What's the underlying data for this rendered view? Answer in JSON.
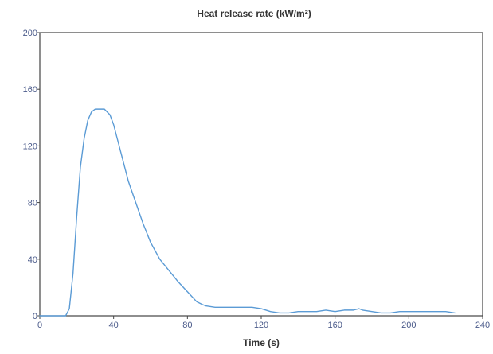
{
  "chart_data": {
    "type": "line",
    "title": "Heat release rate (kW/m²)",
    "xlabel": "Time (s)",
    "ylabel": "",
    "xlim": [
      0,
      240
    ],
    "ylim": [
      0,
      200
    ],
    "xticks": [
      0,
      40,
      80,
      120,
      160,
      200,
      240
    ],
    "yticks": [
      0,
      40,
      80,
      120,
      160,
      200
    ],
    "grid": false,
    "legend": "none",
    "colors": {
      "line": "#5b9bd5",
      "axis": "#444444",
      "text": "#333333"
    },
    "series": [
      {
        "x": [
          0,
          5,
          10,
          14,
          16,
          18,
          20,
          22,
          24,
          26,
          28,
          30,
          32,
          35,
          38,
          40,
          42,
          45,
          48,
          52,
          56,
          60,
          65,
          70,
          75,
          80,
          85,
          88,
          90,
          95,
          100,
          105,
          110,
          115,
          120,
          125,
          130,
          135,
          140,
          145,
          150,
          155,
          160,
          165,
          170,
          173,
          175,
          180,
          185,
          190,
          195,
          200,
          205,
          210,
          215,
          220,
          225
        ],
        "y": [
          0,
          0,
          0,
          0,
          5,
          30,
          70,
          105,
          125,
          138,
          144,
          146,
          146,
          146,
          142,
          135,
          125,
          110,
          95,
          80,
          65,
          52,
          40,
          32,
          24,
          17,
          10,
          8,
          7,
          6,
          6,
          6,
          6,
          6,
          5,
          3,
          2,
          2,
          3,
          3,
          3,
          4,
          3,
          4,
          4,
          5,
          4,
          3,
          2,
          2,
          3,
          3,
          3,
          3,
          3,
          3,
          2
        ]
      }
    ]
  }
}
